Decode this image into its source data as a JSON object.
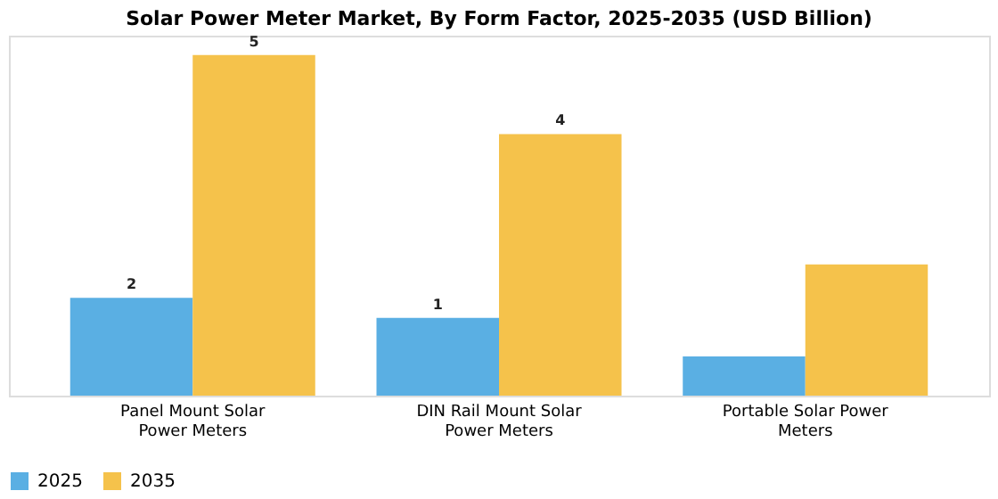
{
  "chart_data": {
    "type": "bar",
    "title": "Solar Power Meter Market, By Form Factor, 2025-2035 (USD Billion)",
    "categories": [
      "Panel Mount Solar Power Meters",
      "DIN Rail Mount Solar Power Meters",
      "Portable Solar Power Meters"
    ],
    "ylim": [
      0,
      5.6
    ],
    "tick_labels": "x",
    "series": [
      {
        "name": "2025",
        "color": "#5aafe3",
        "values": [
          1.52,
          1.21,
          0.61
        ],
        "value_labels": [
          "2",
          "1",
          null
        ]
      },
      {
        "name": "2035",
        "color": "#f5c24b",
        "values": [
          5.3,
          4.07,
          2.04
        ],
        "value_labels": [
          "5",
          "4",
          null
        ]
      }
    ],
    "legend": "bottom",
    "grid": false
  }
}
